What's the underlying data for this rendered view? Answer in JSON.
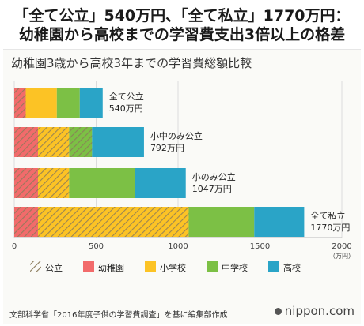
{
  "headline": {
    "line1": "「全て公立」540万円、「全て私立」1770万円：",
    "line2": "幼稚園から高校までの学習費支出3倍以上の格差"
  },
  "source_note": "文部科学省「2016年度子供の学習費調査」を基に編集部作成",
  "brand": "nippon.com",
  "colors": {
    "幼稚園": "#f26b6b",
    "小学校": "#fcc325",
    "中学校": "#7cc045",
    "高校": "#2aa4c7",
    "hatch_line": "#8a7a5a"
  },
  "chart_data": {
    "type": "bar",
    "orientation": "horizontal",
    "stacked": true,
    "title": "幼稚園3歳から高校3年までの学習費総額比較",
    "x_unit": "（万円）",
    "xlim": [
      0,
      2000
    ],
    "xticks": [
      0,
      500,
      1000,
      1500,
      2000
    ],
    "grid": true,
    "legend_position": "bottom",
    "categories": [
      "全て公立",
      "小中のみ公立",
      "小のみ公立",
      "全て私立"
    ],
    "totals": [
      "540万円",
      "792万円",
      "1047万円",
      "1770万円"
    ],
    "series": [
      {
        "name": "幼稚園",
        "values": [
          70,
          145,
          145,
          145
        ]
      },
      {
        "name": "小学校",
        "values": [
          190,
          190,
          190,
          920
        ]
      },
      {
        "name": "中学校",
        "values": [
          140,
          140,
          400,
          400
        ]
      },
      {
        "name": "高校",
        "values": [
          140,
          317,
          312,
          305
        ]
      }
    ],
    "public_hatched": [
      [
        true,
        true,
        true,
        true
      ],
      [
        false,
        true,
        true,
        true
      ],
      [
        false,
        true,
        false,
        false
      ],
      [
        false,
        false,
        false,
        false
      ]
    ],
    "legend": [
      "公立",
      "幼稚園",
      "小学校",
      "中学校",
      "高校"
    ]
  }
}
